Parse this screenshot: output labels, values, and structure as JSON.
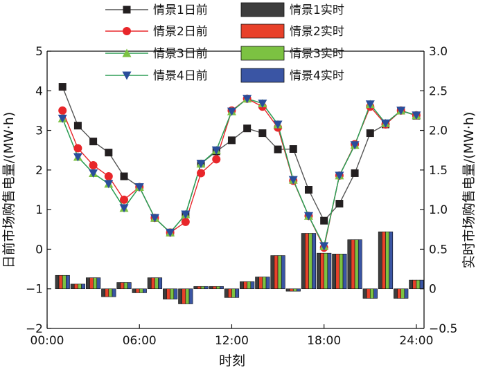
{
  "chart_data": {
    "type": "line+bar",
    "xlabel": "时刻",
    "ylabel_left": "日前市场购售电量/(MW·h)",
    "ylabel_right": "实时市场购售电量/(MW·h)",
    "xlim": [
      0,
      24.5
    ],
    "ylim_left": [
      -2,
      5
    ],
    "ylim_right": [
      -0.5,
      3.0
    ],
    "x_ticks": [
      0,
      6,
      12,
      18,
      24
    ],
    "x_tick_labels": [
      "00:00",
      "06:00",
      "12:00",
      "18:00",
      "24:00"
    ],
    "y_left_ticks": [
      -2,
      -1,
      0,
      1,
      2,
      3,
      4,
      5
    ],
    "y_left_tick_labels": [
      "−2",
      "−1",
      "0",
      "1",
      "2",
      "3",
      "4",
      "5"
    ],
    "y_right_ticks": [
      -0.5,
      0,
      0.5,
      1.0,
      1.5,
      2.0,
      2.5,
      3.0
    ],
    "y_right_tick_labels": [
      "−0.5",
      "0",
      "0.5",
      "1.0",
      "1.5",
      "2.0",
      "2.5",
      "3.0"
    ],
    "hours": [
      1,
      2,
      3,
      4,
      5,
      6,
      7,
      8,
      9,
      10,
      11,
      12,
      13,
      14,
      15,
      16,
      17,
      18,
      19,
      20,
      21,
      22,
      23,
      24
    ],
    "legend_position": "top",
    "day_ahead_series": [
      {
        "name": "情景1日前",
        "color": "#231f20",
        "marker": "square",
        "values": [
          4.1,
          3.12,
          2.72,
          2.44,
          1.84,
          1.57,
          0.79,
          0.42,
          0.88,
          2.16,
          2.47,
          2.75,
          3.05,
          2.93,
          2.52,
          2.53,
          1.5,
          0.72,
          1.15,
          1.92,
          2.93,
          3.15,
          3.5,
          3.37
        ]
      },
      {
        "name": "情景2日前",
        "color": "#e8262a",
        "marker": "circle",
        "values": [
          3.5,
          2.55,
          2.12,
          1.84,
          1.25,
          1.57,
          0.79,
          0.42,
          0.69,
          1.92,
          2.27,
          3.5,
          3.8,
          3.6,
          3.07,
          1.73,
          0.84,
          0.04,
          1.86,
          2.65,
          3.6,
          3.15,
          3.5,
          3.38
        ]
      },
      {
        "name": "情景3日前",
        "color": "#7cc242",
        "marker": "triangle-up",
        "values": [
          3.3,
          2.33,
          1.92,
          1.65,
          1.04,
          1.57,
          0.79,
          0.42,
          0.88,
          2.16,
          2.5,
          3.48,
          3.8,
          3.68,
          3.15,
          1.75,
          0.84,
          0.08,
          1.86,
          2.63,
          3.66,
          3.18,
          3.5,
          3.38
        ]
      },
      {
        "name": "情景4日前",
        "color": "#2a4d9b",
        "marker": "triangle-down",
        "values": [
          3.3,
          2.33,
          1.92,
          1.65,
          1.04,
          1.57,
          0.79,
          0.42,
          0.88,
          2.16,
          2.5,
          3.48,
          3.8,
          3.68,
          3.15,
          1.75,
          0.84,
          0.08,
          1.86,
          2.63,
          3.66,
          3.18,
          3.5,
          3.38
        ]
      }
    ],
    "line_color": "#2e9e56",
    "realtime_series": [
      {
        "name": "情景1实时",
        "color": "#3d3d3d",
        "values": [
          0.17,
          0.06,
          0.14,
          -0.1,
          0.08,
          -0.05,
          0.14,
          -0.13,
          -0.19,
          0.03,
          0.03,
          -0.11,
          0.09,
          0.15,
          0.42,
          -0.03,
          0.7,
          0.45,
          0.44,
          0.62,
          -0.12,
          0.72,
          -0.12,
          0.11
        ]
      },
      {
        "name": "情景2实时",
        "color": "#e8412a",
        "values": [
          0.17,
          0.06,
          0.14,
          -0.1,
          0.08,
          -0.05,
          0.14,
          -0.13,
          -0.19,
          0.03,
          0.03,
          -0.11,
          0.09,
          0.15,
          0.42,
          -0.03,
          0.7,
          0.45,
          0.44,
          0.62,
          -0.12,
          0.72,
          -0.12,
          0.11
        ]
      },
      {
        "name": "情景3实时",
        "color": "#7cc242",
        "values": [
          0.17,
          0.06,
          0.14,
          -0.1,
          0.08,
          -0.05,
          0.14,
          -0.13,
          -0.19,
          0.03,
          0.03,
          -0.11,
          0.09,
          0.15,
          0.42,
          -0.03,
          0.7,
          0.45,
          0.44,
          0.62,
          -0.12,
          0.72,
          -0.12,
          0.11
        ]
      },
      {
        "name": "情景4实时",
        "color": "#3a55a4",
        "values": [
          0.17,
          0.06,
          0.14,
          -0.1,
          0.08,
          -0.05,
          0.14,
          -0.13,
          -0.19,
          0.03,
          0.03,
          -0.11,
          0.09,
          0.15,
          0.42,
          -0.03,
          0.7,
          0.45,
          0.44,
          0.62,
          -0.12,
          0.72,
          -0.12,
          0.11
        ]
      }
    ]
  }
}
